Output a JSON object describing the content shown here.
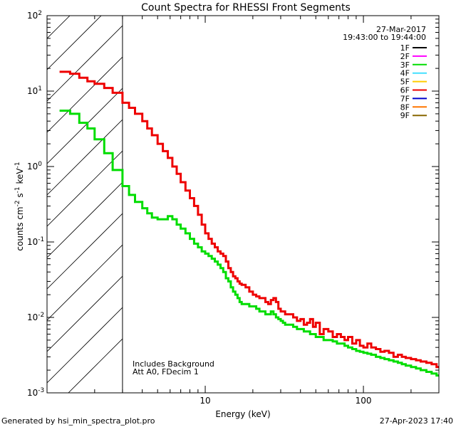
{
  "chart_data": {
    "type": "line",
    "title": "Count Spectra for RHESSI Front Segments",
    "xlabel": "Energy (keV)",
    "ylabel": {
      "base": "counts cm",
      "exp1": "-2",
      "mid1": " s",
      "exp2": "-1",
      "mid2": " keV",
      "exp3": "-1"
    },
    "x_scale": "log",
    "y_scale": "log",
    "xlim": [
      1,
      300
    ],
    "ylim": [
      0.001,
      100
    ],
    "x_ticks": [
      {
        "value": 10,
        "label": "10"
      },
      {
        "value": 100,
        "label": "100"
      }
    ],
    "y_ticks": [
      {
        "value": 0.001,
        "base": "10",
        "exp": "-3"
      },
      {
        "value": 0.01,
        "base": "10",
        "exp": "-2"
      },
      {
        "value": 0.1,
        "base": "10",
        "exp": "-1"
      },
      {
        "value": 1,
        "base": "10",
        "exp": "0"
      },
      {
        "value": 10,
        "base": "10",
        "exp": "1"
      },
      {
        "value": 100,
        "base": "10",
        "exp": "2"
      }
    ],
    "shaded_region": {
      "x_min": 1,
      "x_max": 3,
      "pattern": "hatched"
    },
    "date": "27-Mar-2017",
    "time_range": "19:43:00 to 19:44:00",
    "legend": [
      {
        "name": "1F",
        "color": "#000000"
      },
      {
        "name": "2F",
        "color": "#ff00ff"
      },
      {
        "name": "3F",
        "color": "#00dd00"
      },
      {
        "name": "4F",
        "color": "#44e0ff"
      },
      {
        "name": "5F",
        "color": "#ffcc00"
      },
      {
        "name": "6F",
        "color": "#ee0000"
      },
      {
        "name": "7F",
        "color": "#0000cc"
      },
      {
        "name": "8F",
        "color": "#ff7700"
      },
      {
        "name": "9F",
        "color": "#886600"
      }
    ],
    "annotations": [
      "Includes Background",
      "Att A0, FDecim 1"
    ],
    "series": [
      {
        "name": "6F",
        "color": "#ee0000",
        "x": [
          1.2,
          1.4,
          1.6,
          1.8,
          2.0,
          2.3,
          2.6,
          3.0,
          3.3,
          3.6,
          4.0,
          4.3,
          4.6,
          5.0,
          5.4,
          5.8,
          6.2,
          6.6,
          7.0,
          7.5,
          8.0,
          8.5,
          9.0,
          9.5,
          10,
          10.5,
          11,
          11.5,
          12,
          12.5,
          13,
          13.5,
          14,
          14.5,
          15,
          15.5,
          16,
          16.5,
          17,
          18,
          19,
          20,
          21,
          22,
          23,
          24,
          25,
          26,
          27,
          28,
          29,
          30,
          31,
          32,
          34,
          36,
          38,
          40,
          42,
          44,
          46,
          48,
          50,
          53,
          56,
          60,
          64,
          68,
          72,
          76,
          80,
          85,
          90,
          95,
          100,
          106,
          112,
          120,
          128,
          136,
          145,
          155,
          165,
          175,
          185,
          200,
          215,
          230,
          250,
          270,
          290
        ],
        "y": [
          18,
          17,
          15,
          13.5,
          12.5,
          11,
          9.5,
          7,
          6,
          5,
          4,
          3.2,
          2.6,
          2.0,
          1.6,
          1.3,
          1.0,
          0.8,
          0.62,
          0.48,
          0.38,
          0.3,
          0.23,
          0.17,
          0.13,
          0.11,
          0.095,
          0.085,
          0.075,
          0.07,
          0.065,
          0.055,
          0.045,
          0.04,
          0.035,
          0.033,
          0.03,
          0.028,
          0.027,
          0.025,
          0.022,
          0.02,
          0.019,
          0.018,
          0.018,
          0.016,
          0.015,
          0.017,
          0.018,
          0.016,
          0.013,
          0.012,
          0.012,
          0.011,
          0.011,
          0.01,
          0.009,
          0.0095,
          0.008,
          0.0085,
          0.0095,
          0.0075,
          0.0085,
          0.006,
          0.007,
          0.0065,
          0.0055,
          0.006,
          0.0055,
          0.005,
          0.0055,
          0.0045,
          0.005,
          0.0042,
          0.004,
          0.0045,
          0.004,
          0.0038,
          0.0035,
          0.0036,
          0.0034,
          0.003,
          0.0032,
          0.003,
          0.0029,
          0.0028,
          0.0027,
          0.0026,
          0.0025,
          0.0024,
          0.0022
        ]
      },
      {
        "name": "3F",
        "color": "#00dd00",
        "x": [
          1.2,
          1.4,
          1.6,
          1.8,
          2.0,
          2.3,
          2.6,
          3.0,
          3.3,
          3.6,
          4.0,
          4.3,
          4.6,
          5.0,
          5.4,
          5.8,
          6.2,
          6.6,
          7.0,
          7.5,
          8.0,
          8.5,
          9.0,
          9.5,
          10,
          10.5,
          11,
          11.5,
          12,
          12.5,
          13,
          13.5,
          14,
          14.5,
          15,
          15.5,
          16,
          16.5,
          17,
          18,
          19,
          20,
          21,
          22,
          23,
          24,
          25,
          26,
          27,
          28,
          29,
          30,
          31,
          32,
          34,
          36,
          38,
          40,
          42,
          44,
          46,
          48,
          50,
          53,
          56,
          60,
          64,
          68,
          72,
          76,
          80,
          85,
          90,
          95,
          100,
          106,
          112,
          120,
          128,
          136,
          145,
          155,
          165,
          175,
          185,
          200,
          215,
          230,
          250,
          270,
          290
        ],
        "y": [
          5.5,
          5.0,
          3.8,
          3.2,
          2.3,
          1.5,
          0.9,
          0.55,
          0.42,
          0.34,
          0.28,
          0.24,
          0.21,
          0.2,
          0.2,
          0.22,
          0.2,
          0.17,
          0.15,
          0.13,
          0.11,
          0.095,
          0.085,
          0.075,
          0.07,
          0.065,
          0.06,
          0.055,
          0.05,
          0.045,
          0.04,
          0.033,
          0.03,
          0.025,
          0.022,
          0.02,
          0.018,
          0.016,
          0.015,
          0.015,
          0.014,
          0.014,
          0.013,
          0.012,
          0.012,
          0.011,
          0.011,
          0.012,
          0.011,
          0.01,
          0.0095,
          0.009,
          0.0085,
          0.008,
          0.008,
          0.0075,
          0.007,
          0.007,
          0.0065,
          0.0065,
          0.006,
          0.006,
          0.0055,
          0.0055,
          0.005,
          0.005,
          0.0048,
          0.0045,
          0.0045,
          0.0042,
          0.004,
          0.0038,
          0.0036,
          0.0035,
          0.0034,
          0.0033,
          0.0032,
          0.003,
          0.0029,
          0.0028,
          0.0027,
          0.0026,
          0.0025,
          0.0024,
          0.0023,
          0.0022,
          0.0021,
          0.002,
          0.0019,
          0.0018,
          0.0017
        ]
      }
    ]
  },
  "footer": {
    "left": "Generated by hsi_min_spectra_plot.pro",
    "right": "27-Apr-2023 17:40"
  }
}
